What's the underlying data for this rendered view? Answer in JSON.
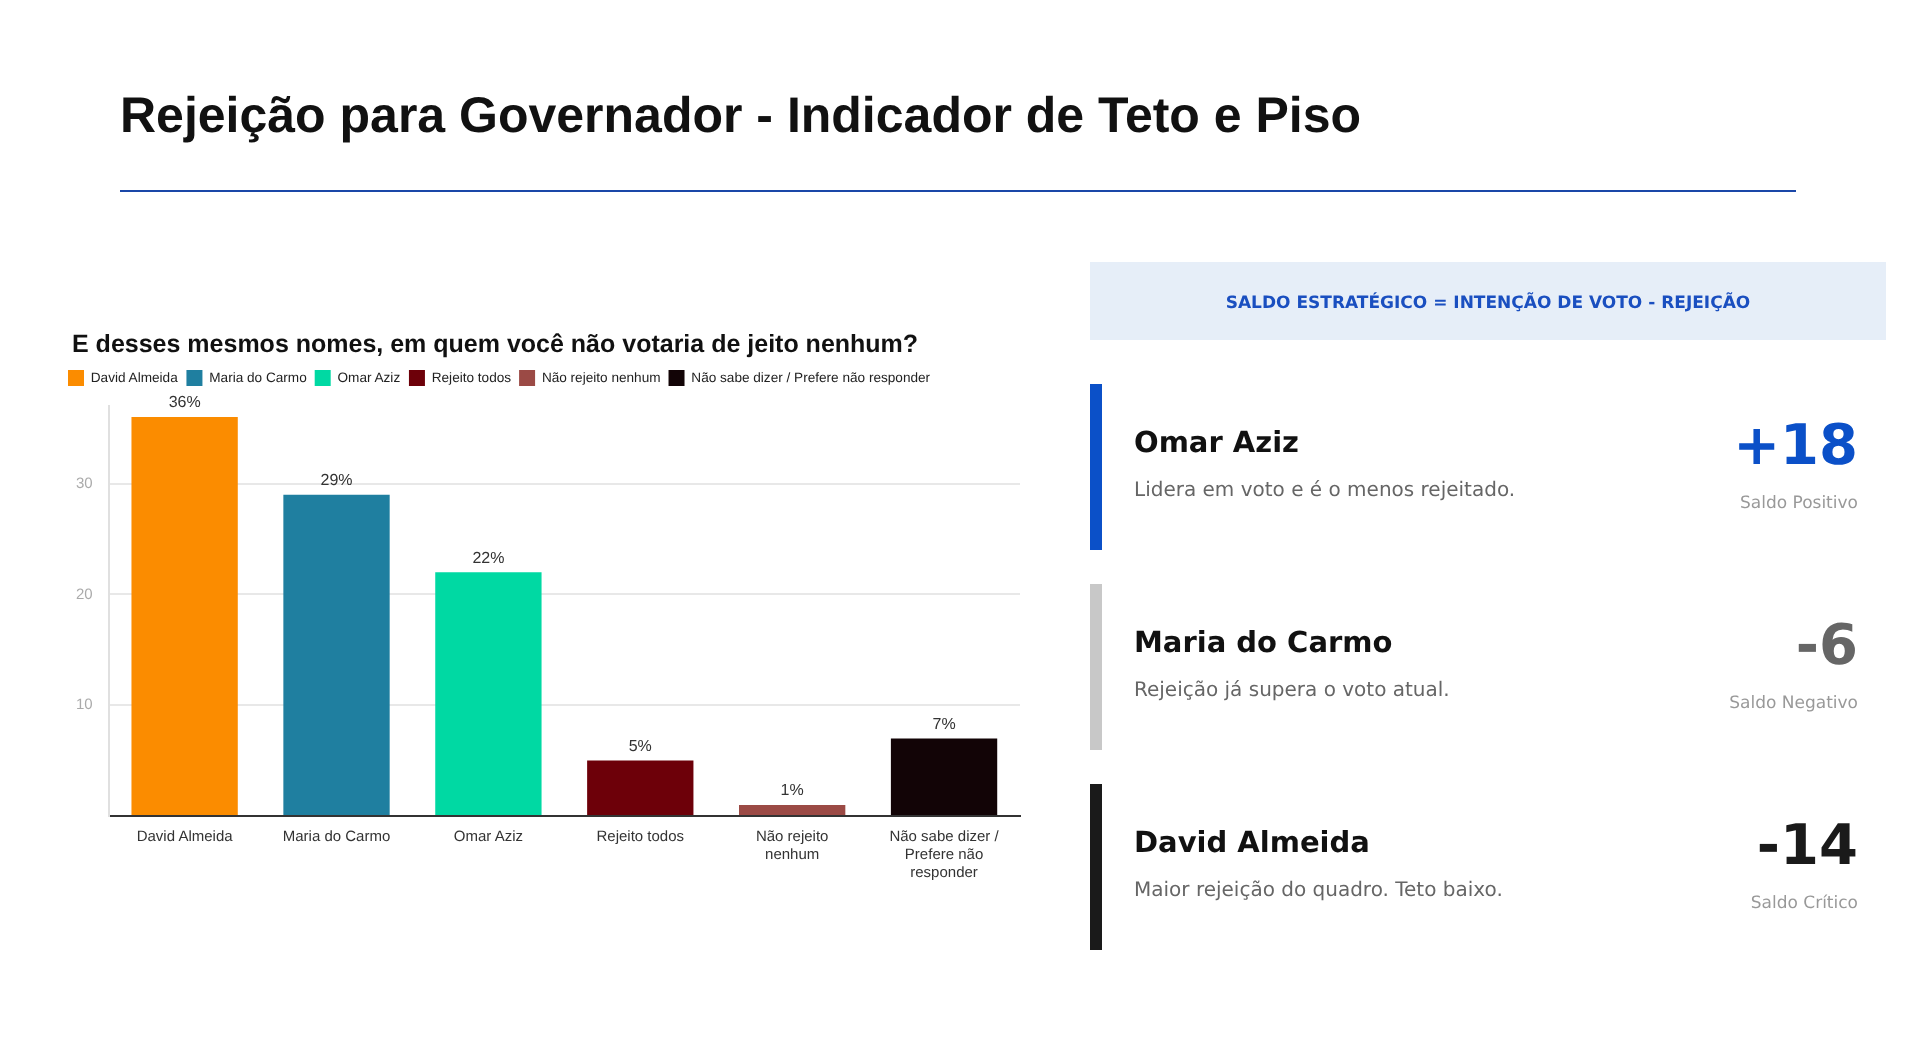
{
  "chart_data": [
    {
      "type": "bar",
      "title": "Rejeição para Governador - Indicador de Teto e Piso",
      "subtitle": "E desses mesmos nomes, em quem você não votaria de jeito nenhum?",
      "categories": [
        "David Almeida",
        "Maria do Carmo",
        "Omar Aziz",
        "Rejeito todos",
        "Não rejeito nenhum",
        "Não sabe dizer / Prefere não responder"
      ],
      "series": [
        {
          "name": "David Almeida",
          "color": "#fb8c00",
          "values": [
            36,
            null,
            null,
            null,
            null,
            null
          ],
          "value_labels": [
            "36%",
            null,
            null,
            null,
            null,
            null
          ]
        },
        {
          "name": "Maria do Carmo",
          "color": "#1f7fa0",
          "values": [
            null,
            29,
            null,
            null,
            null,
            null
          ],
          "value_labels": [
            null,
            "29%",
            null,
            null,
            null,
            null
          ]
        },
        {
          "name": "Omar Aziz",
          "color": "#00d9a3",
          "values": [
            null,
            null,
            22,
            null,
            null,
            null
          ],
          "value_labels": [
            null,
            null,
            "22%",
            null,
            null,
            null
          ]
        },
        {
          "name": "Rejeito todos",
          "color": "#6d0009",
          "values": [
            null,
            null,
            null,
            5,
            null,
            null
          ],
          "value_labels": [
            null,
            null,
            null,
            "5%",
            null,
            null
          ]
        },
        {
          "name": "Não rejeito nenhum",
          "color": "#9b4a45",
          "values": [
            null,
            null,
            null,
            null,
            1,
            null
          ],
          "value_labels": [
            null,
            null,
            null,
            null,
            "1%",
            null
          ]
        },
        {
          "name": "Não sabe dizer / Prefere não responder",
          "color": "#120406",
          "values": [
            null,
            null,
            null,
            null,
            null,
            7
          ],
          "value_labels": [
            null,
            null,
            null,
            null,
            null,
            "7%"
          ]
        }
      ],
      "ylim": [
        0,
        37
      ],
      "yticks": [
        {
          "value": 0,
          "label": null
        },
        10,
        20,
        30
      ],
      "grid": "y",
      "legend": "top left"
    },
    {
      "type": "other",
      "title": "SALDO ESTRATÉGICO = INTENÇÃO DE VOTO - REJEIÇÃO",
      "categories": [
        "Omar Aziz",
        "Maria do Carmo",
        "David Almeida"
      ],
      "values": [
        18,
        -6,
        -14
      ],
      "value_labels": [
        "+18",
        "-6",
        "-14"
      ],
      "colors": [
        "#0b50c8",
        "#c8c8c8",
        "#1a1a1a"
      ],
      "annotations": [
        "Lidera em voto e é o menos rejeitado.",
        "Saldo Positivo",
        "Rejeição já supera o voto atual.",
        "Saldo Negativo",
        "Maior rejeição do quadro. Teto baixo.",
        "Saldo Crítico"
      ]
    }
  ]
}
